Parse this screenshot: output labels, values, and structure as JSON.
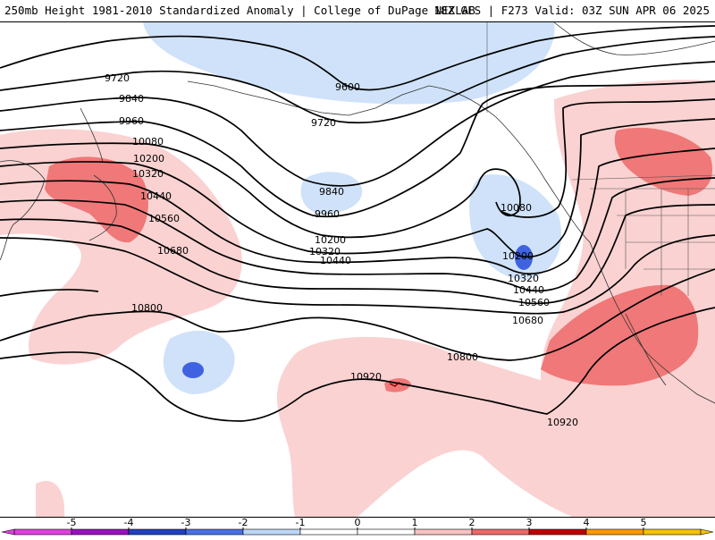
{
  "header": {
    "title_left": "250mb Height 1981-2010 Standardized Anomaly | College of DuPage NEXLAB",
    "title_right": "18Z GFS | F273 Valid: 03Z SUN APR 06 2025"
  },
  "contour_labels": {
    "c9600": "9600",
    "c9720a": "9720",
    "c9720b": "9720",
    "c9840a": "9840",
    "c9840b": "9840",
    "c9960a": "9960",
    "c9960b": "9960",
    "c10080a": "10080",
    "c10080b": "10080",
    "c10200a": "10200",
    "c10200b": "10200",
    "c10200c": "10200",
    "c10320a": "10320",
    "c10320b": "10320",
    "c10320c": "10320",
    "c10440a": "10440",
    "c10440b": "10440",
    "c10440c": "10440",
    "c10560a": "10560",
    "c10560b": "10560",
    "c10680a": "10680",
    "c10680b": "10680",
    "c10800a": "10800",
    "c10800b": "10800",
    "c10920a": "10920",
    "c10920b": "10920"
  },
  "colorbar": {
    "ticks": [
      "-5",
      "-4",
      "-3",
      "-2",
      "-1",
      "0",
      "1",
      "2",
      "3",
      "4",
      "5"
    ],
    "colors": [
      "#e040e0",
      "#9a10c0",
      "#2040c0",
      "#4a70e8",
      "#bcd8f8",
      "#ffffff",
      "#ffffff",
      "#f9c2c2",
      "#ee6868",
      "#c00000",
      "#ff9a00",
      "#f5c400"
    ]
  }
}
